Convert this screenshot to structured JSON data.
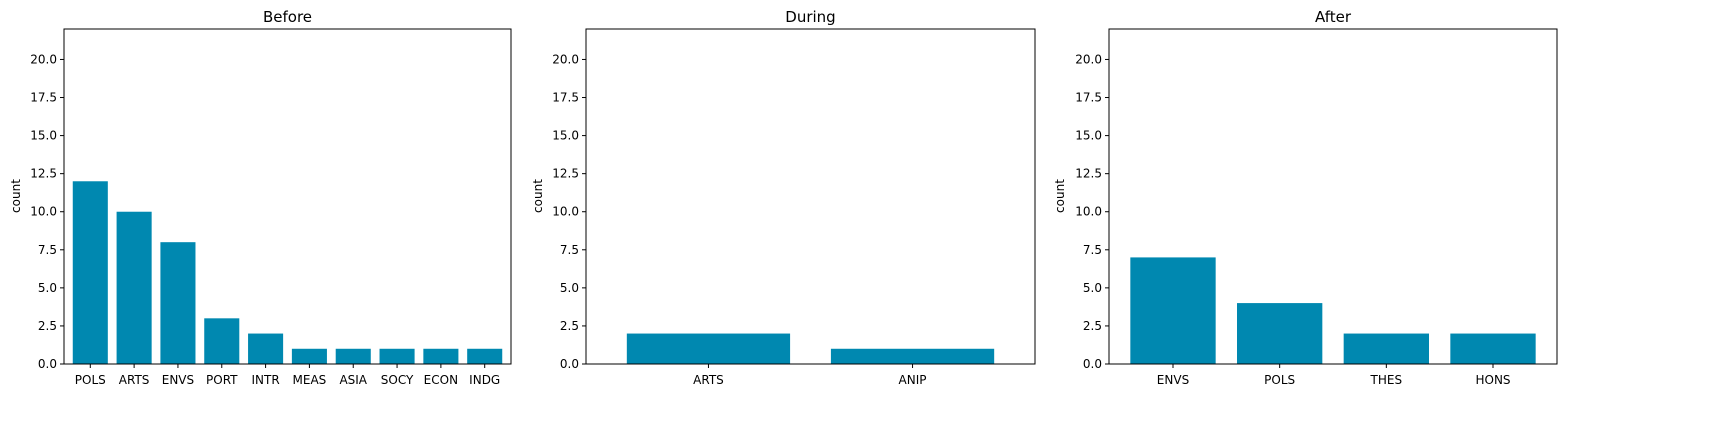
{
  "chart_data": [
    {
      "type": "bar",
      "title": "Before",
      "xlabel": "",
      "ylabel": "count",
      "ylim": [
        0,
        22
      ],
      "yticks": [
        "0.0",
        "2.5",
        "5.0",
        "7.5",
        "10.0",
        "12.5",
        "15.0",
        "17.5",
        "20.0"
      ],
      "categories": [
        "POLS",
        "ARTS",
        "ENVS",
        "PORT",
        "INTR",
        "MEAS",
        "ASIA",
        "SOCY",
        "ECON",
        "INDG"
      ],
      "values": [
        12,
        10,
        8,
        3,
        2,
        1,
        1,
        1,
        1,
        1
      ],
      "color": "#0088b0",
      "grid": false
    },
    {
      "type": "bar",
      "title": "During",
      "xlabel": "",
      "ylabel": "count",
      "ylim": [
        0,
        22
      ],
      "yticks": [
        "0.0",
        "2.5",
        "5.0",
        "7.5",
        "10.0",
        "12.5",
        "15.0",
        "17.5",
        "20.0"
      ],
      "categories": [
        "ARTS",
        "ANIP"
      ],
      "values": [
        2,
        1
      ],
      "color": "#0088b0",
      "grid": false
    },
    {
      "type": "bar",
      "title": "After",
      "xlabel": "",
      "ylabel": "count",
      "ylim": [
        0,
        22
      ],
      "yticks": [
        "0.0",
        "2.5",
        "5.0",
        "7.5",
        "10.0",
        "12.5",
        "15.0",
        "17.5",
        "20.0"
      ],
      "categories": [
        "ENVS",
        "POLS",
        "THES",
        "HONS"
      ],
      "values": [
        7,
        4,
        2,
        2
      ],
      "color": "#0088b0",
      "grid": false
    }
  ]
}
